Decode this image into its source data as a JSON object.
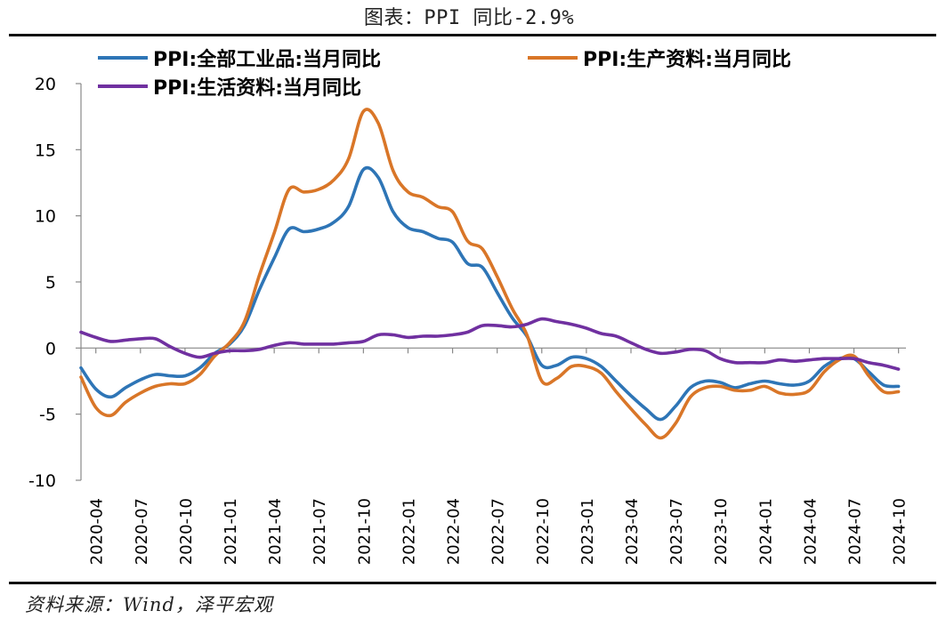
{
  "title": "图表：PPI 同比-2.9%",
  "source": "资料来源：Wind，泽平宏观",
  "chart_data": {
    "type": "line",
    "title": "图表：PPI 同比-2.9%",
    "xlabel": "",
    "ylabel": "",
    "ylim": [
      -10,
      20
    ],
    "yticks": [
      -10,
      -5,
      0,
      5,
      10,
      15,
      20
    ],
    "grid": false,
    "legend_position": "top",
    "x": [
      "2020-03",
      "2020-04",
      "2020-05",
      "2020-06",
      "2020-07",
      "2020-08",
      "2020-09",
      "2020-10",
      "2020-11",
      "2020-12",
      "2021-01",
      "2021-02",
      "2021-03",
      "2021-04",
      "2021-05",
      "2021-06",
      "2021-07",
      "2021-08",
      "2021-09",
      "2021-10",
      "2021-11",
      "2021-12",
      "2022-01",
      "2022-02",
      "2022-03",
      "2022-04",
      "2022-05",
      "2022-06",
      "2022-07",
      "2022-08",
      "2022-09",
      "2022-10",
      "2022-11",
      "2022-12",
      "2023-01",
      "2023-02",
      "2023-03",
      "2023-04",
      "2023-05",
      "2023-06",
      "2023-07",
      "2023-08",
      "2023-09",
      "2023-10",
      "2023-11",
      "2023-12",
      "2024-01",
      "2024-02",
      "2024-03",
      "2024-04",
      "2024-05",
      "2024-06",
      "2024-07",
      "2024-08",
      "2024-09",
      "2024-10"
    ],
    "xtick_labels": [
      "2020-04",
      "2020-07",
      "2020-10",
      "2021-01",
      "2021-04",
      "2021-07",
      "2021-10",
      "2022-01",
      "2022-04",
      "2022-07",
      "2022-10",
      "2023-01",
      "2023-04",
      "2023-07",
      "2023-10",
      "2024-01",
      "2024-04",
      "2024-07",
      "2024-10"
    ],
    "series": [
      {
        "name": "PPI:全部工业品:当月同比",
        "color": "#2e75b6",
        "values": [
          -1.5,
          -3.1,
          -3.7,
          -3.0,
          -2.4,
          -2.0,
          -2.1,
          -2.1,
          -1.5,
          -0.4,
          0.3,
          1.7,
          4.4,
          6.8,
          9.0,
          8.8,
          9.0,
          9.5,
          10.7,
          13.5,
          12.9,
          10.3,
          9.1,
          8.8,
          8.3,
          8.0,
          6.4,
          6.1,
          4.2,
          2.3,
          0.9,
          -1.3,
          -1.3,
          -0.7,
          -0.8,
          -1.4,
          -2.5,
          -3.6,
          -4.6,
          -5.4,
          -4.4,
          -3.0,
          -2.5,
          -2.6,
          -3.0,
          -2.7,
          -2.5,
          -2.7,
          -2.8,
          -2.5,
          -1.4,
          -0.8,
          -0.8,
          -1.8,
          -2.8,
          -2.9
        ]
      },
      {
        "name": "PPI:生产资料:当月同比",
        "color": "#d97628",
        "values": [
          -2.2,
          -4.5,
          -5.1,
          -4.1,
          -3.4,
          -2.9,
          -2.7,
          -2.7,
          -2.0,
          -0.6,
          0.4,
          2.0,
          5.5,
          8.7,
          12.0,
          11.8,
          12.0,
          12.7,
          14.3,
          17.9,
          17.0,
          13.4,
          11.8,
          11.4,
          10.7,
          10.3,
          8.1,
          7.5,
          5.4,
          3.0,
          1.0,
          -2.5,
          -2.3,
          -1.4,
          -1.4,
          -1.9,
          -3.3,
          -4.6,
          -5.8,
          -6.8,
          -5.7,
          -3.7,
          -3.0,
          -2.9,
          -3.2,
          -3.2,
          -2.9,
          -3.4,
          -3.5,
          -3.2,
          -1.8,
          -0.9,
          -0.6,
          -2.1,
          -3.3,
          -3.3
        ]
      },
      {
        "name": "PPI:生活资料:当月同比",
        "color": "#7030a0",
        "values": [
          1.2,
          0.8,
          0.5,
          0.6,
          0.7,
          0.7,
          0.1,
          -0.4,
          -0.7,
          -0.4,
          -0.2,
          -0.2,
          -0.1,
          0.2,
          0.4,
          0.3,
          0.3,
          0.3,
          0.4,
          0.5,
          1.0,
          1.0,
          0.8,
          0.9,
          0.9,
          1.0,
          1.2,
          1.7,
          1.7,
          1.6,
          1.8,
          2.2,
          2.0,
          1.8,
          1.5,
          1.1,
          0.9,
          0.4,
          -0.1,
          -0.4,
          -0.3,
          -0.1,
          -0.2,
          -0.8,
          -1.1,
          -1.1,
          -1.1,
          -0.9,
          -1.0,
          -0.9,
          -0.8,
          -0.8,
          -0.8,
          -1.1,
          -1.3,
          -1.6
        ]
      }
    ]
  }
}
